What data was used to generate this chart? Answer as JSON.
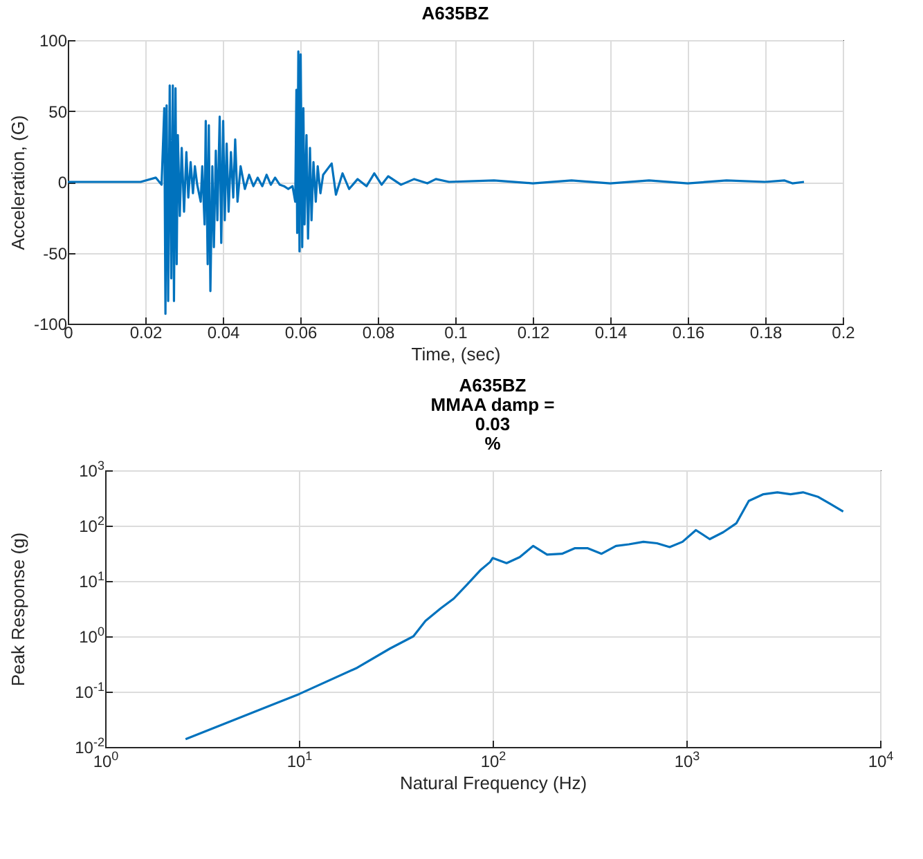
{
  "chart_data": [
    {
      "type": "line",
      "title": "A635BZ",
      "xlabel": "Time, (sec)",
      "ylabel": "Acceleration, (G)",
      "xlim": [
        0,
        0.2
      ],
      "xticks": [
        0,
        0.02,
        0.04,
        0.06,
        0.08,
        0.1,
        0.12,
        0.14,
        0.16,
        0.18,
        0.2
      ],
      "ylim": [
        -100,
        100
      ],
      "yticks": [
        -100,
        -50,
        0,
        50,
        100
      ],
      "grid": true,
      "x": [
        0,
        0.0188,
        0.0227,
        0.0242,
        0.0249,
        0.0252,
        0.0255,
        0.0259,
        0.0263,
        0.0267,
        0.0271,
        0.0274,
        0.0278,
        0.0281,
        0.0284,
        0.0289,
        0.0294,
        0.03,
        0.0306,
        0.0311,
        0.0317,
        0.0323,
        0.0328,
        0.0334,
        0.0343,
        0.0347,
        0.0353,
        0.0356,
        0.0361,
        0.0364,
        0.0368,
        0.0373,
        0.0377,
        0.0382,
        0.0386,
        0.0392,
        0.0396,
        0.0401,
        0.0405,
        0.041,
        0.0415,
        0.0421,
        0.0427,
        0.0432,
        0.0438,
        0.0446,
        0.0457,
        0.0468,
        0.0479,
        0.049,
        0.0502,
        0.0513,
        0.0524,
        0.0535,
        0.0547,
        0.0558,
        0.0569,
        0.058,
        0.0587,
        0.059,
        0.0592,
        0.0595,
        0.0598,
        0.0601,
        0.0605,
        0.0608,
        0.0611,
        0.0616,
        0.062,
        0.0625,
        0.0629,
        0.0634,
        0.064,
        0.0645,
        0.0652,
        0.0659,
        0.0681,
        0.0692,
        0.0709,
        0.0726,
        0.0748,
        0.0771,
        0.0791,
        0.081,
        0.0827,
        0.086,
        0.0894,
        0.0928,
        0.095,
        0.0984,
        0.11,
        0.12,
        0.13,
        0.14,
        0.15,
        0.16,
        0.17,
        0.18,
        0.185,
        0.187,
        0.19
      ],
      "series": [
        {
          "color": "#0072bd",
          "values": [
            0,
            0,
            3,
            -2,
            52,
            -93,
            54,
            -84,
            68,
            -68,
            68,
            -84,
            66,
            -58,
            33,
            -24,
            24,
            -21,
            21,
            -11,
            14,
            -8,
            11,
            -2,
            -14,
            11,
            -30,
            43,
            -58,
            40,
            -77,
            11,
            -46,
            22,
            -27,
            46,
            -43,
            43,
            -27,
            27,
            -21,
            21,
            -11,
            30,
            -14,
            11,
            -5,
            5,
            -3,
            3,
            -3,
            5,
            -2,
            3,
            -2,
            -3,
            -5,
            -3,
            -14,
            65,
            -36,
            92,
            -49,
            90,
            -46,
            52,
            -30,
            33,
            -40,
            24,
            -27,
            14,
            -14,
            11,
            -8,
            5,
            13,
            -9,
            6,
            -5,
            2,
            -3,
            6,
            -2,
            4,
            -2,
            2,
            -1,
            2,
            0,
            1,
            -1,
            1,
            -1,
            1,
            -1,
            1,
            0,
            1,
            -1,
            0
          ]
        }
      ]
    },
    {
      "type": "line",
      "title": "A635BZ\nMMAA damp =\n0.03\n%",
      "xlabel": "Natural Frequency (Hz)",
      "ylabel": "Peak Response (g)",
      "log": "xy",
      "grid": true,
      "xlim": [
        1,
        10000
      ],
      "xticks": [
        {
          "value": 1,
          "label": "10$^{0}$"
        },
        {
          "value": 10,
          "label": "10$^{1}$"
        },
        {
          "value": 100,
          "label": "10$^{2}$"
        },
        {
          "value": 1000,
          "label": "10$^{3}$"
        },
        {
          "value": 10000,
          "label": "10$^{4}$"
        }
      ],
      "ylim": [
        0.01,
        1000
      ],
      "yticks": [
        {
          "value": 0.01,
          "label": "10$^{-2}$"
        },
        {
          "value": 0.1,
          "label": "10$^{-1}$"
        },
        {
          "value": 1,
          "label": "10$^{0}$"
        },
        {
          "value": 10,
          "label": "10$^{1}$"
        },
        {
          "value": 100,
          "label": "10$^{2}$"
        },
        {
          "value": 1000,
          "label": "10$^{3}$"
        }
      ],
      "x": [
        2.6,
        10,
        20,
        29.5,
        39,
        45,
        54,
        63,
        74,
        87,
        97,
        100,
        118,
        138,
        162,
        191,
        228,
        265,
        310,
        365,
        433,
        505,
        600,
        705,
        820,
        955,
        1120,
        1320,
        1550,
        1810,
        2100,
        2500,
        2950,
        3450,
        4000,
        4800,
        5500,
        6450
      ],
      "series": [
        {
          "color": "#0072bd",
          "values": [
            0.0138,
            0.09,
            0.27,
            0.6,
            1.0,
            1.9,
            3.2,
            4.8,
            8.7,
            16,
            22,
            26,
            21,
            27,
            43,
            30,
            31,
            39,
            39,
            31,
            43,
            46,
            51,
            48,
            41,
            51,
            83,
            57,
            76,
            110,
            280,
            370,
            400,
            370,
            400,
            330,
            250,
            180
          ]
        }
      ]
    }
  ]
}
